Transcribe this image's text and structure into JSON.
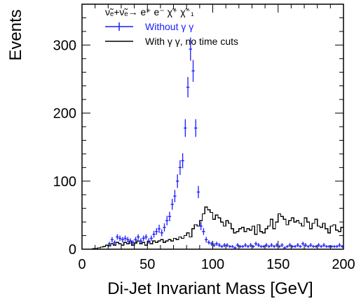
{
  "chart_data": {
    "type": "line",
    "xlabel": "Di-Jet Invariant Mass [GeV]",
    "ylabel": "Events",
    "xlim": [
      0,
      200
    ],
    "ylim": [
      0,
      360
    ],
    "x_ticks": [
      0,
      50,
      100,
      150,
      200
    ],
    "y_ticks": [
      0,
      100,
      200,
      300
    ],
    "grid": false,
    "legend_placement": "top-left",
    "legend": {
      "header": "ν̃ₑ+ν̃ₑ→ e⁺ e⁻ χ̃⁺ χ̃⁻₁",
      "entries": [
        {
          "label": "Without γ γ",
          "style": "points",
          "color": "#1a1aff"
        },
        {
          "label": "With γ γ, no time cuts",
          "style": "step",
          "color": "#000000"
        }
      ]
    },
    "series": [
      {
        "name": "Without γ γ",
        "style": "points",
        "color": "#1a1aff",
        "x": [
          21,
          23,
          25,
          27,
          29,
          31,
          33,
          35,
          37,
          39,
          41,
          43,
          45,
          47,
          49,
          51,
          53,
          55,
          57,
          59,
          61,
          63,
          65,
          67,
          69,
          71,
          73,
          75,
          77,
          79,
          81,
          83,
          85,
          87,
          89,
          91,
          93,
          95,
          97,
          99,
          101,
          103,
          105,
          107,
          109,
          111,
          113,
          115,
          117,
          119,
          121,
          123,
          125,
          127,
          129,
          131,
          133,
          135,
          137,
          139,
          141,
          143,
          145,
          147,
          149,
          151,
          153,
          155,
          157,
          159,
          161,
          163,
          165,
          167,
          169,
          171,
          173,
          175,
          177,
          179,
          181,
          183,
          185,
          187,
          189,
          191,
          193,
          195,
          197,
          199
        ],
        "y": [
          8,
          14,
          10,
          18,
          16,
          14,
          16,
          14,
          12,
          10,
          14,
          18,
          12,
          16,
          18,
          12,
          16,
          22,
          26,
          30,
          24,
          32,
          42,
          48,
          66,
          78,
          100,
          120,
          130,
          178,
          238,
          294,
          262,
          178,
          84,
          34,
          26,
          14,
          10,
          8,
          6,
          8,
          6,
          4,
          6,
          6,
          4,
          4,
          2,
          6,
          4,
          4,
          6,
          4,
          6,
          4,
          8,
          6,
          4,
          4,
          6,
          4,
          6,
          4,
          6,
          4,
          6,
          2,
          4,
          6,
          4,
          4,
          6,
          4,
          8,
          6,
          4,
          6,
          4,
          4,
          6,
          4,
          6,
          4,
          4,
          4,
          4,
          4,
          6,
          4
        ],
        "yerr": [
          3,
          4,
          3,
          4,
          4,
          4,
          4,
          4,
          4,
          3,
          4,
          4,
          4,
          4,
          4,
          4,
          4,
          5,
          5,
          6,
          5,
          6,
          7,
          7,
          8,
          9,
          10,
          11,
          11,
          13,
          15,
          17,
          16,
          13,
          9,
          6,
          5,
          4,
          3,
          3,
          3,
          3,
          3,
          2,
          3,
          3,
          2,
          2,
          2,
          3,
          2,
          2,
          3,
          2,
          3,
          2,
          3,
          3,
          2,
          2,
          3,
          2,
          3,
          2,
          3,
          2,
          3,
          2,
          2,
          3,
          2,
          2,
          3,
          2,
          3,
          3,
          2,
          3,
          2,
          2,
          3,
          2,
          3,
          2,
          2,
          2,
          2,
          2,
          3,
          2
        ]
      },
      {
        "name": "With γ γ, no time cuts",
        "style": "step",
        "color": "#000000",
        "bin_width": 2,
        "x": [
          0,
          2,
          4,
          6,
          8,
          10,
          12,
          14,
          16,
          18,
          20,
          22,
          24,
          26,
          28,
          30,
          32,
          34,
          36,
          38,
          40,
          42,
          44,
          46,
          48,
          50,
          52,
          54,
          56,
          58,
          60,
          62,
          64,
          66,
          68,
          70,
          72,
          74,
          76,
          78,
          80,
          82,
          84,
          86,
          88,
          90,
          92,
          94,
          96,
          98,
          100,
          102,
          104,
          106,
          108,
          110,
          112,
          114,
          116,
          118,
          120,
          122,
          124,
          126,
          128,
          130,
          132,
          134,
          136,
          138,
          140,
          142,
          144,
          146,
          148,
          150,
          152,
          154,
          156,
          158,
          160,
          162,
          164,
          166,
          168,
          170,
          172,
          174,
          176,
          178,
          180,
          182,
          184,
          186,
          188,
          190,
          192,
          194,
          196,
          198
        ],
        "y": [
          0,
          0,
          0,
          0,
          1,
          1,
          2,
          3,
          4,
          6,
          5,
          8,
          6,
          10,
          8,
          6,
          10,
          8,
          12,
          6,
          9,
          12,
          8,
          10,
          6,
          11,
          8,
          12,
          10,
          12,
          14,
          10,
          12,
          14,
          12,
          16,
          14,
          18,
          16,
          20,
          24,
          18,
          30,
          36,
          34,
          42,
          52,
          62,
          58,
          54,
          44,
          50,
          46,
          40,
          34,
          42,
          38,
          30,
          24,
          26,
          30,
          32,
          26,
          30,
          28,
          34,
          22,
          36,
          26,
          24,
          30,
          34,
          44,
          30,
          40,
          52,
          48,
          44,
          36,
          42,
          46,
          40,
          42,
          38,
          34,
          46,
          40,
          30,
          38,
          44,
          34,
          32,
          38,
          30,
          24,
          34,
          36,
          28,
          26,
          32
        ]
      }
    ]
  }
}
